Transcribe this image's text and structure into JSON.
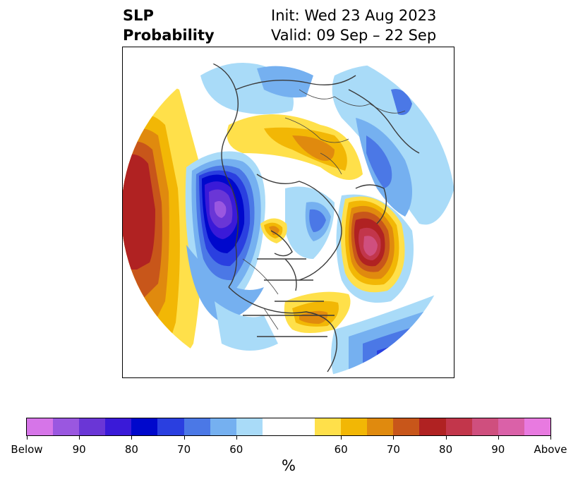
{
  "title": {
    "left_line1": "SLP",
    "left_line2": "Probability",
    "right_line1": "Init: Wed 23 Aug 2023",
    "right_line2": "Valid: 09 Sep – 22 Sep"
  },
  "colorbar": {
    "units": "%",
    "tick_labels": [
      "Below",
      "90",
      "80",
      "70",
      "60",
      "60",
      "70",
      "80",
      "90",
      "Above"
    ],
    "below_colors": [
      "#d675e8",
      "#9a57e0",
      "#6a36d6",
      "#3a1ad8",
      "#0008cc",
      "#2a3fe0",
      "#4b78e6",
      "#75b0f0",
      "#a9dbf8"
    ],
    "neutral_color": "#ffffff",
    "above_colors": [
      "#ffe04a",
      "#f2b705",
      "#e08a0e",
      "#c8561a",
      "#b02222",
      "#c2364b",
      "#cf4f7e",
      "#da61a8",
      "#e87ae0"
    ]
  },
  "map": {
    "projection": "north-polar-stereographic",
    "features": [
      "coastlines",
      "country-borders",
      "us-state-borders"
    ]
  }
}
